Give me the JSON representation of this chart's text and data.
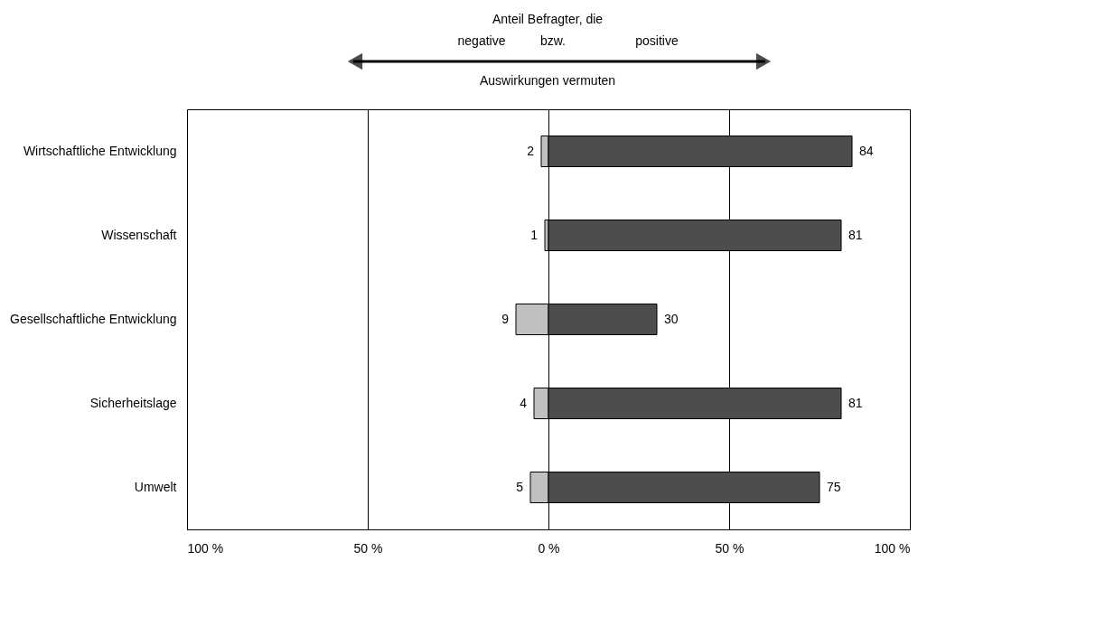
{
  "chart_data": {
    "type": "bar",
    "orientation": "horizontal",
    "categories": [
      "Wirtschaftliche Entwicklung",
      "Wissenschaft",
      "Gesellschaftliche Entwicklung",
      "Sicherheitslage",
      "Umwelt"
    ],
    "series": [
      {
        "color": "#c0c0c0",
        "values": [
          2,
          1,
          9,
          4,
          5
        ],
        "base": [
          -2,
          -1,
          -9,
          -4,
          -5
        ],
        "value_labels": [
          "2",
          "1",
          "9",
          "4",
          "5"
        ]
      },
      {
        "color": "#4d4d4d",
        "values": [
          84,
          81,
          30,
          81,
          75
        ],
        "value_labels": [
          "84",
          "81",
          "30",
          "81",
          "75"
        ]
      }
    ],
    "xlim": [
      -100,
      100
    ],
    "xticks": [
      {
        "value": -100,
        "label": "100 %"
      },
      {
        "value": -50,
        "label": "50 %"
      },
      {
        "value": 0,
        "label": "0 %"
      },
      {
        "value": 50,
        "label": "50 %"
      },
      {
        "value": 100,
        "label": "100 %"
      }
    ],
    "grid": "x",
    "annotations": [
      "Anteil Befragter, die",
      "negative",
      "bzw.",
      "positive",
      "Auswirkungen vermuten"
    ]
  }
}
